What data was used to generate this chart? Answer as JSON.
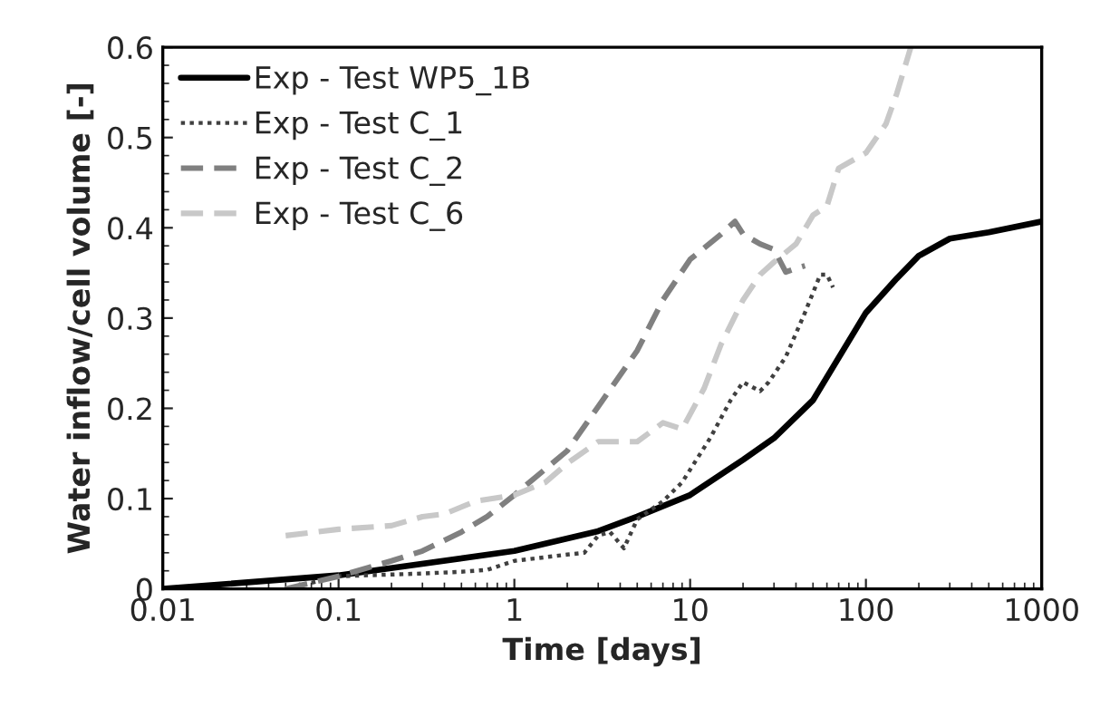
{
  "chart_data": {
    "type": "line",
    "xlabel": "Time [days]",
    "ylabel": "Water inflow/cell volume [-]",
    "log": "x",
    "xlim": [
      0.01,
      1000
    ],
    "xticks": [
      0.01,
      0.1,
      1,
      10,
      100,
      1000
    ],
    "ylim": [
      0,
      0.6
    ],
    "yticks": [
      0,
      0.1,
      0.2,
      0.3,
      0.4,
      0.5,
      0.6
    ],
    "grid": false,
    "legend": "top left",
    "series": [
      {
        "name": "Exp - Test WP5_1B",
        "color": "#000000",
        "line_style": "solid",
        "x": [
          0.01,
          0.1,
          1,
          3,
          5,
          10,
          20,
          30,
          50,
          100,
          150,
          200,
          300,
          500,
          1000
        ],
        "values": [
          0.0,
          0.015,
          0.042,
          0.064,
          0.08,
          0.104,
          0.143,
          0.167,
          0.209,
          0.306,
          0.344,
          0.369,
          0.388,
          0.395,
          0.407
        ]
      },
      {
        "name": "Exp - Test C_1",
        "color": "#404040",
        "line_style": "dotted",
        "x": [
          0.05,
          0.1,
          0.3,
          0.5,
          0.7,
          1,
          2,
          2.5,
          3,
          3.5,
          4.2,
          5,
          7,
          9,
          10,
          13,
          17,
          20,
          25,
          28,
          35,
          45,
          55,
          60,
          65
        ],
        "values": [
          0.0,
          0.014,
          0.017,
          0.019,
          0.021,
          0.031,
          0.038,
          0.04,
          0.059,
          0.063,
          0.045,
          0.077,
          0.097,
          0.118,
          0.132,
          0.167,
          0.209,
          0.229,
          0.219,
          0.229,
          0.257,
          0.306,
          0.348,
          0.348,
          0.334
        ]
      },
      {
        "name": "Exp - Test C_2",
        "color": "#808080",
        "line_style": "dashed",
        "x": [
          0.05,
          0.1,
          0.2,
          0.3,
          0.5,
          0.7,
          1,
          2,
          3,
          5,
          7,
          10,
          15,
          18,
          20,
          25,
          30,
          35,
          40,
          45
        ],
        "values": [
          0.0,
          0.014,
          0.031,
          0.042,
          0.063,
          0.08,
          0.104,
          0.153,
          0.202,
          0.264,
          0.32,
          0.365,
          0.393,
          0.407,
          0.393,
          0.382,
          0.376,
          0.351,
          0.355,
          0.358
        ]
      },
      {
        "name": "Exp - Test C_6",
        "color": "#c8c8c8",
        "line_style": "dashed",
        "x": [
          0.05,
          0.1,
          0.2,
          0.3,
          0.4,
          0.6,
          1,
          1.5,
          2,
          3,
          5,
          7,
          9,
          12,
          15,
          20,
          25,
          30,
          40,
          50,
          60,
          70,
          100,
          130,
          150,
          180
        ],
        "values": [
          0.059,
          0.066,
          0.07,
          0.08,
          0.083,
          0.097,
          0.104,
          0.118,
          0.139,
          0.163,
          0.163,
          0.184,
          0.177,
          0.222,
          0.271,
          0.32,
          0.348,
          0.362,
          0.382,
          0.414,
          0.424,
          0.466,
          0.483,
          0.515,
          0.549,
          0.6
        ]
      }
    ]
  }
}
